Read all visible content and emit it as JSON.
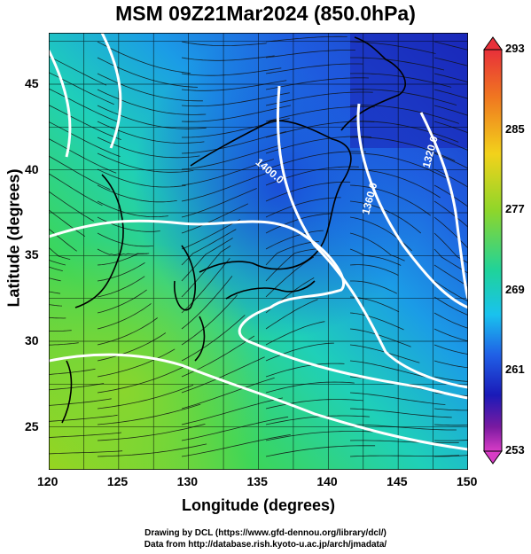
{
  "title": "MSM 09Z21Mar2024 (850.0hPa)",
  "axes": {
    "xlabel": "Longitude (degrees)",
    "ylabel": "Latitude (degrees)",
    "xticks": [
      "120",
      "125",
      "130",
      "135",
      "140",
      "145",
      "150"
    ],
    "yticks": [
      "25",
      "30",
      "35",
      "40",
      "45"
    ]
  },
  "colorbar": {
    "labels": [
      "293",
      "285",
      "277",
      "269",
      "261",
      "253"
    ],
    "colors": [
      "#e8303a",
      "#f07820",
      "#f2d21b",
      "#8fd62a",
      "#1fd39a",
      "#19c2ee",
      "#2060e6",
      "#1a1ab8",
      "#7a1aa0",
      "#d83cc6"
    ]
  },
  "contours": [
    {
      "label": "1400.0"
    },
    {
      "label": "1360.0"
    },
    {
      "label": "1320.0"
    }
  ],
  "credits": {
    "line1": "Drawing by DCL (https://www.gfd-dennou.org/library/dcl/)",
    "line2": "Data from http://database.rish.kyoto-u.ac.jp/arch/jmadata/"
  }
}
